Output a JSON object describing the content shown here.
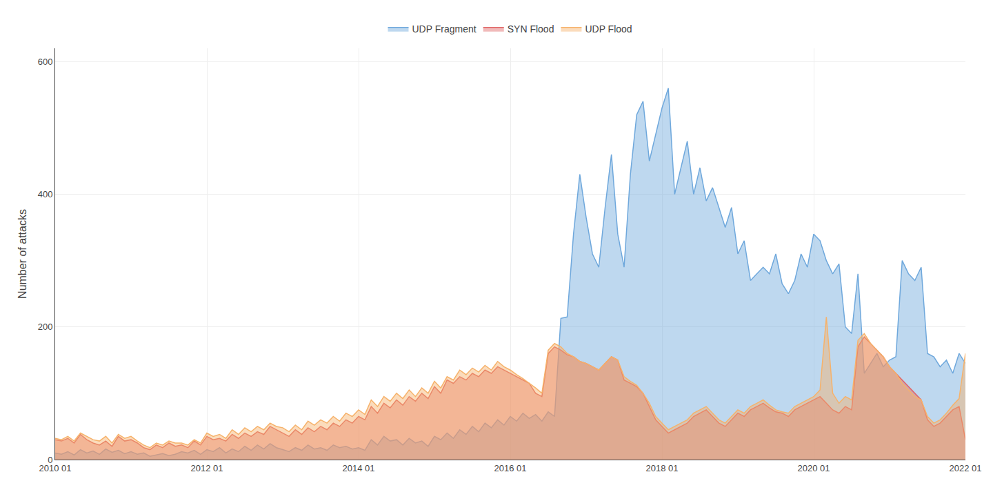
{
  "chart_data": {
    "type": "area",
    "ylabel": "Number of attacks",
    "categories": [
      "2010 01",
      null,
      null,
      null,
      null,
      null,
      null,
      null,
      null,
      null,
      null,
      null,
      null,
      null,
      null,
      null,
      null,
      null,
      null,
      null,
      null,
      null,
      null,
      null,
      "2012 01",
      null,
      null,
      null,
      null,
      null,
      null,
      null,
      null,
      null,
      null,
      null,
      null,
      null,
      null,
      null,
      null,
      null,
      null,
      null,
      null,
      null,
      null,
      null,
      "2014 01",
      null,
      null,
      null,
      null,
      null,
      null,
      null,
      null,
      null,
      null,
      null,
      null,
      null,
      null,
      null,
      null,
      null,
      null,
      null,
      null,
      null,
      null,
      null,
      "2016 01",
      null,
      null,
      null,
      null,
      null,
      null,
      null,
      null,
      null,
      null,
      null,
      null,
      null,
      null,
      null,
      null,
      null,
      null,
      null,
      null,
      null,
      null,
      null,
      "2018 01",
      null,
      null,
      null,
      null,
      null,
      null,
      null,
      null,
      null,
      null,
      null,
      null,
      null,
      null,
      null,
      null,
      null,
      null,
      null,
      null,
      null,
      null,
      null,
      "2020 01",
      null,
      null,
      null,
      null,
      null,
      null,
      null,
      null,
      null,
      null,
      null,
      null,
      null,
      null,
      null,
      null,
      null,
      null,
      null,
      null,
      null,
      null,
      null,
      "2022 01"
    ],
    "series": [
      {
        "name": "UDP Fragment",
        "color": "#6fa8dc",
        "values": [
          10,
          8,
          12,
          7,
          15,
          10,
          13,
          8,
          16,
          11,
          14,
          9,
          12,
          8,
          10,
          5,
          7,
          9,
          6,
          8,
          12,
          10,
          14,
          8,
          15,
          12,
          18,
          10,
          16,
          12,
          20,
          14,
          22,
          16,
          24,
          18,
          15,
          12,
          18,
          14,
          22,
          16,
          18,
          14,
          22,
          18,
          20,
          16,
          18,
          14,
          30,
          22,
          35,
          28,
          30,
          22,
          32,
          25,
          28,
          20,
          35,
          30,
          40,
          32,
          45,
          38,
          50,
          42,
          55,
          48,
          60,
          52,
          65,
          58,
          70,
          62,
          68,
          58,
          72,
          65,
          213,
          215,
          340,
          430,
          365,
          310,
          290,
          380,
          460,
          340,
          290,
          430,
          520,
          540,
          450,
          490,
          530,
          560,
          400,
          440,
          480,
          400,
          440,
          390,
          410,
          380,
          350,
          380,
          310,
          330,
          270,
          280,
          290,
          280,
          310,
          265,
          250,
          270,
          310,
          290,
          340,
          330,
          300,
          280,
          295,
          200,
          190,
          280,
          130,
          145,
          160,
          140,
          150,
          155,
          300,
          280,
          270,
          290,
          160,
          155,
          140,
          150,
          130,
          160,
          145
        ]
      },
      {
        "name": "SYN Flood",
        "color": "#e06666",
        "values": [
          30,
          28,
          32,
          25,
          38,
          30,
          25,
          22,
          28,
          20,
          35,
          28,
          30,
          25,
          18,
          15,
          22,
          18,
          25,
          20,
          22,
          18,
          28,
          22,
          35,
          30,
          32,
          28,
          38,
          32,
          40,
          35,
          42,
          38,
          50,
          45,
          40,
          35,
          45,
          38,
          48,
          42,
          50,
          45,
          55,
          50,
          60,
          55,
          65,
          60,
          80,
          70,
          85,
          78,
          90,
          82,
          95,
          88,
          100,
          92,
          110,
          100,
          120,
          115,
          125,
          120,
          130,
          125,
          135,
          130,
          140,
          135,
          130,
          125,
          120,
          115,
          100,
          95,
          160,
          170,
          165,
          158,
          155,
          148,
          145,
          140,
          135,
          145,
          155,
          150,
          120,
          115,
          110,
          100,
          80,
          60,
          50,
          40,
          45,
          50,
          55,
          65,
          70,
          75,
          65,
          55,
          50,
          60,
          70,
          65,
          75,
          80,
          85,
          78,
          72,
          70,
          65,
          75,
          80,
          85,
          90,
          95,
          85,
          75,
          70,
          80,
          75,
          170,
          185,
          175,
          165,
          155,
          140,
          130,
          120,
          110,
          100,
          90,
          60,
          50,
          55,
          65,
          75,
          80,
          30
        ]
      },
      {
        "name": "UDP Flood",
        "color": "#f6b26b",
        "values": [
          32,
          30,
          35,
          28,
          40,
          35,
          30,
          28,
          35,
          25,
          38,
          32,
          35,
          28,
          22,
          18,
          25,
          22,
          28,
          25,
          25,
          22,
          30,
          25,
          40,
          35,
          38,
          32,
          45,
          38,
          48,
          42,
          50,
          45,
          55,
          50,
          48,
          42,
          52,
          45,
          58,
          52,
          60,
          55,
          65,
          58,
          70,
          65,
          75,
          68,
          90,
          80,
          95,
          88,
          100,
          92,
          105,
          95,
          108,
          100,
          118,
          108,
          125,
          120,
          135,
          128,
          138,
          132,
          142,
          135,
          148,
          140,
          135,
          128,
          122,
          115,
          108,
          100,
          165,
          175,
          170,
          160,
          155,
          148,
          145,
          140,
          135,
          145,
          155,
          150,
          125,
          118,
          112,
          100,
          85,
          65,
          55,
          45,
          50,
          55,
          60,
          70,
          75,
          80,
          70,
          60,
          55,
          65,
          75,
          70,
          80,
          85,
          90,
          82,
          75,
          72,
          70,
          80,
          85,
          90,
          95,
          105,
          215,
          100,
          85,
          95,
          90,
          180,
          190,
          175,
          165,
          155,
          140,
          130,
          115,
          105,
          95,
          90,
          65,
          55,
          60,
          70,
          82,
          92,
          160
        ]
      }
    ],
    "ylim": [
      0,
      620
    ],
    "yticks": [
      0,
      200,
      400,
      600
    ],
    "grid": true,
    "legend": "top"
  }
}
